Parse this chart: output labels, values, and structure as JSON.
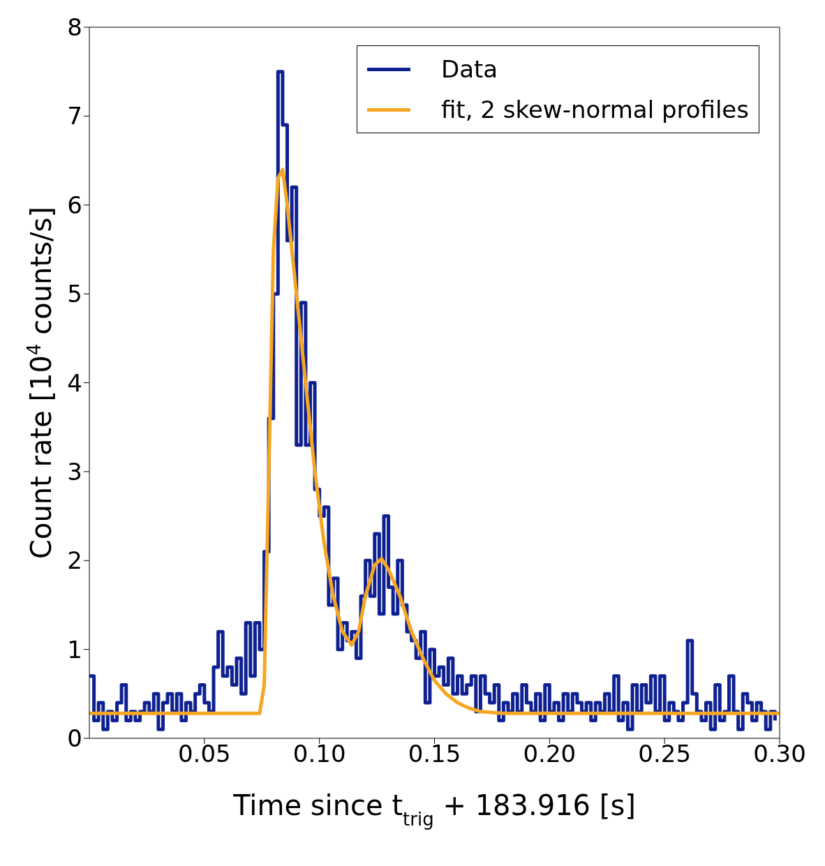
{
  "chart_data": {
    "type": "step",
    "xlabel": "Time since t$_{trig}$ + 183.916 [s]",
    "ylabel": "Count rate [10$^{4}$ counts/s]",
    "xlim": [
      0,
      0.3
    ],
    "xticks": [
      {
        "value": 0.05,
        "label": "0.05"
      },
      {
        "value": 0.1,
        "label": "0.10"
      },
      {
        "value": 0.15,
        "label": "0.15"
      },
      {
        "value": 0.2,
        "label": "0.20"
      },
      {
        "value": 0.25,
        "label": "0.25"
      },
      {
        "value": 0.3,
        "label": "0.30"
      }
    ],
    "ylim": [
      0,
      8
    ],
    "yticks": [
      0,
      1,
      2,
      3,
      4,
      5,
      6,
      7,
      8
    ],
    "grid": false,
    "legend": "top right",
    "marker": "none",
    "x": [
      0,
      0.002,
      0.004,
      0.006,
      0.008,
      0.01,
      0.012,
      0.014,
      0.016,
      0.018,
      0.02,
      0.022,
      0.024,
      0.026,
      0.028,
      0.03,
      0.032,
      0.034,
      0.036,
      0.038,
      0.04,
      0.042,
      0.044,
      0.046,
      0.048,
      0.05,
      0.052,
      0.054,
      0.056,
      0.058,
      0.06,
      0.062,
      0.064,
      0.066,
      0.068,
      0.07,
      0.072,
      0.074,
      0.076,
      0.078,
      0.08,
      0.082,
      0.084,
      0.086,
      0.088,
      0.09,
      0.092,
      0.094,
      0.096,
      0.098,
      0.1,
      0.102,
      0.104,
      0.106,
      0.108,
      0.11,
      0.112,
      0.114,
      0.116,
      0.118,
      0.12,
      0.122,
      0.124,
      0.126,
      0.128,
      0.13,
      0.132,
      0.134,
      0.136,
      0.138,
      0.14,
      0.142,
      0.144,
      0.146,
      0.148,
      0.15,
      0.152,
      0.154,
      0.156,
      0.158,
      0.16,
      0.162,
      0.164,
      0.166,
      0.168,
      0.17,
      0.172,
      0.174,
      0.176,
      0.178,
      0.18,
      0.182,
      0.184,
      0.186,
      0.188,
      0.19,
      0.192,
      0.194,
      0.196,
      0.198,
      0.2,
      0.202,
      0.204,
      0.206,
      0.208,
      0.21,
      0.212,
      0.214,
      0.216,
      0.218,
      0.22,
      0.222,
      0.224,
      0.226,
      0.228,
      0.23,
      0.232,
      0.234,
      0.236,
      0.238,
      0.24,
      0.242,
      0.244,
      0.246,
      0.248,
      0.25,
      0.252,
      0.254,
      0.256,
      0.258,
      0.26,
      0.262,
      0.264,
      0.266,
      0.268,
      0.27,
      0.272,
      0.274,
      0.276,
      0.278,
      0.28,
      0.282,
      0.284,
      0.286,
      0.288,
      0.29,
      0.292,
      0.294,
      0.296,
      0.298
    ],
    "series": [
      {
        "name": "Data",
        "type": "step",
        "color": "#0f2190",
        "values": [
          0.7,
          0.2,
          0.4,
          0.1,
          0.3,
          0.2,
          0.4,
          0.6,
          0.2,
          0.3,
          0.2,
          0.3,
          0.4,
          0.3,
          0.5,
          0.1,
          0.4,
          0.5,
          0.3,
          0.5,
          0.2,
          0.4,
          0.3,
          0.5,
          0.6,
          0.4,
          0.3,
          0.8,
          1.2,
          0.7,
          0.8,
          0.6,
          0.9,
          0.5,
          1.3,
          0.7,
          1.3,
          1.0,
          2.1,
          3.6,
          5.0,
          7.5,
          6.9,
          5.6,
          6.2,
          3.3,
          4.9,
          3.3,
          4.0,
          2.8,
          2.5,
          2.6,
          1.5,
          1.8,
          1.0,
          1.3,
          1.1,
          1.2,
          0.9,
          1.6,
          2.0,
          1.6,
          2.3,
          1.4,
          2.5,
          1.7,
          1.4,
          2.0,
          1.5,
          1.2,
          1.1,
          0.9,
          1.2,
          0.4,
          1.0,
          0.7,
          0.8,
          0.6,
          0.9,
          0.5,
          0.7,
          0.5,
          0.6,
          0.7,
          0.3,
          0.7,
          0.5,
          0.4,
          0.6,
          0.2,
          0.4,
          0.3,
          0.5,
          0.3,
          0.6,
          0.4,
          0.3,
          0.5,
          0.2,
          0.6,
          0.3,
          0.4,
          0.2,
          0.5,
          0.3,
          0.5,
          0.4,
          0.3,
          0.4,
          0.2,
          0.4,
          0.3,
          0.5,
          0.3,
          0.7,
          0.2,
          0.4,
          0.1,
          0.6,
          0.3,
          0.6,
          0.4,
          0.7,
          0.3,
          0.7,
          0.2,
          0.4,
          0.3,
          0.2,
          0.4,
          1.1,
          0.5,
          0.3,
          0.2,
          0.4,
          0.1,
          0.6,
          0.2,
          0.3,
          0.7,
          0.3,
          0.1,
          0.5,
          0.4,
          0.2,
          0.4,
          0.3,
          0.1,
          0.3,
          0.2
        ]
      },
      {
        "name": "fit, 2 skew-normal profiles",
        "type": "line",
        "color": "#f5a623",
        "x": [
          0,
          0.074,
          0.076,
          0.078,
          0.08,
          0.082,
          0.084,
          0.086,
          0.088,
          0.09,
          0.094,
          0.098,
          0.102,
          0.106,
          0.11,
          0.114,
          0.117,
          0.12,
          0.124,
          0.127,
          0.13,
          0.135,
          0.14,
          0.145,
          0.15,
          0.155,
          0.16,
          0.165,
          0.17,
          0.18,
          0.3
        ],
        "values": [
          0.28,
          0.28,
          0.6,
          3.0,
          5.5,
          6.3,
          6.4,
          6.0,
          5.5,
          5.0,
          4.0,
          3.0,
          2.2,
          1.6,
          1.2,
          1.05,
          1.2,
          1.6,
          1.95,
          2.02,
          1.9,
          1.6,
          1.2,
          0.9,
          0.65,
          0.5,
          0.4,
          0.34,
          0.3,
          0.28,
          0.28
        ]
      }
    ]
  }
}
